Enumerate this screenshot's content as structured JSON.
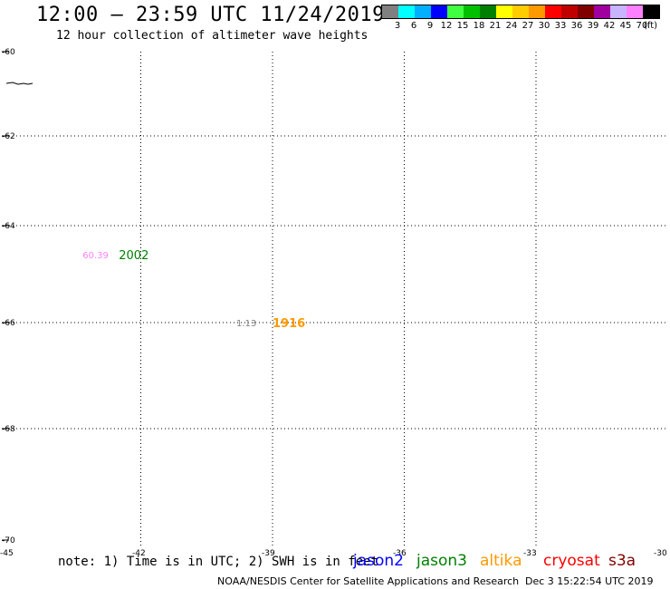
{
  "header": {
    "title": "12:00 – 23:59 UTC 11/24/2019",
    "subtitle": "12 hour collection of altimeter wave heights"
  },
  "legend": {
    "colors": [
      "#808080",
      "#00ffff",
      "#00b0ff",
      "#0000ff",
      "#40ff40",
      "#00c000",
      "#008000",
      "#ffff00",
      "#ffcc00",
      "#ff9900",
      "#ff0000",
      "#c00000",
      "#800000",
      "#a000a0",
      "#c8b4ff",
      "#ff80ff",
      "#000000"
    ],
    "labels": [
      "3",
      "6",
      "9",
      "12",
      "15",
      "18",
      "21",
      "24",
      "27",
      "30",
      "33",
      "36",
      "39",
      "42",
      "45",
      "70"
    ],
    "unit": "(ft)"
  },
  "map": {
    "y_ticks": [
      "-60",
      "-62",
      "-64",
      "-66",
      "-68",
      "-70"
    ],
    "x_ticks": [
      "-45",
      "-42",
      "-39",
      "-36",
      "-33",
      "-30"
    ],
    "observations": [
      {
        "value": "60.39",
        "time": "2002",
        "value_color": "#ff80ff",
        "time_color": "#008000",
        "lon": -42.5,
        "lat": -64.6
      },
      {
        "value": "1.13",
        "time": "1916",
        "value_color": "#808080",
        "time_color": "#ff9900",
        "lon": -39.0,
        "lat": -66.0
      }
    ]
  },
  "footer": {
    "note": "note: 1) Time is in UTC; 2) SWH is in feet",
    "satellites": [
      {
        "name": "jason2",
        "color": "#0000ff"
      },
      {
        "name": "jason3",
        "color": "#008000"
      },
      {
        "name": "altika",
        "color": "#ff9900"
      },
      {
        "name": "cryosat",
        "color": "#ff0000"
      },
      {
        "name": "s3a",
        "color": "#800000"
      }
    ],
    "credit": "NOAA/NESDIS Center for Satellite Applications and Research",
    "timestamp": "Dec  3 15:22:54 UTC 2019"
  }
}
